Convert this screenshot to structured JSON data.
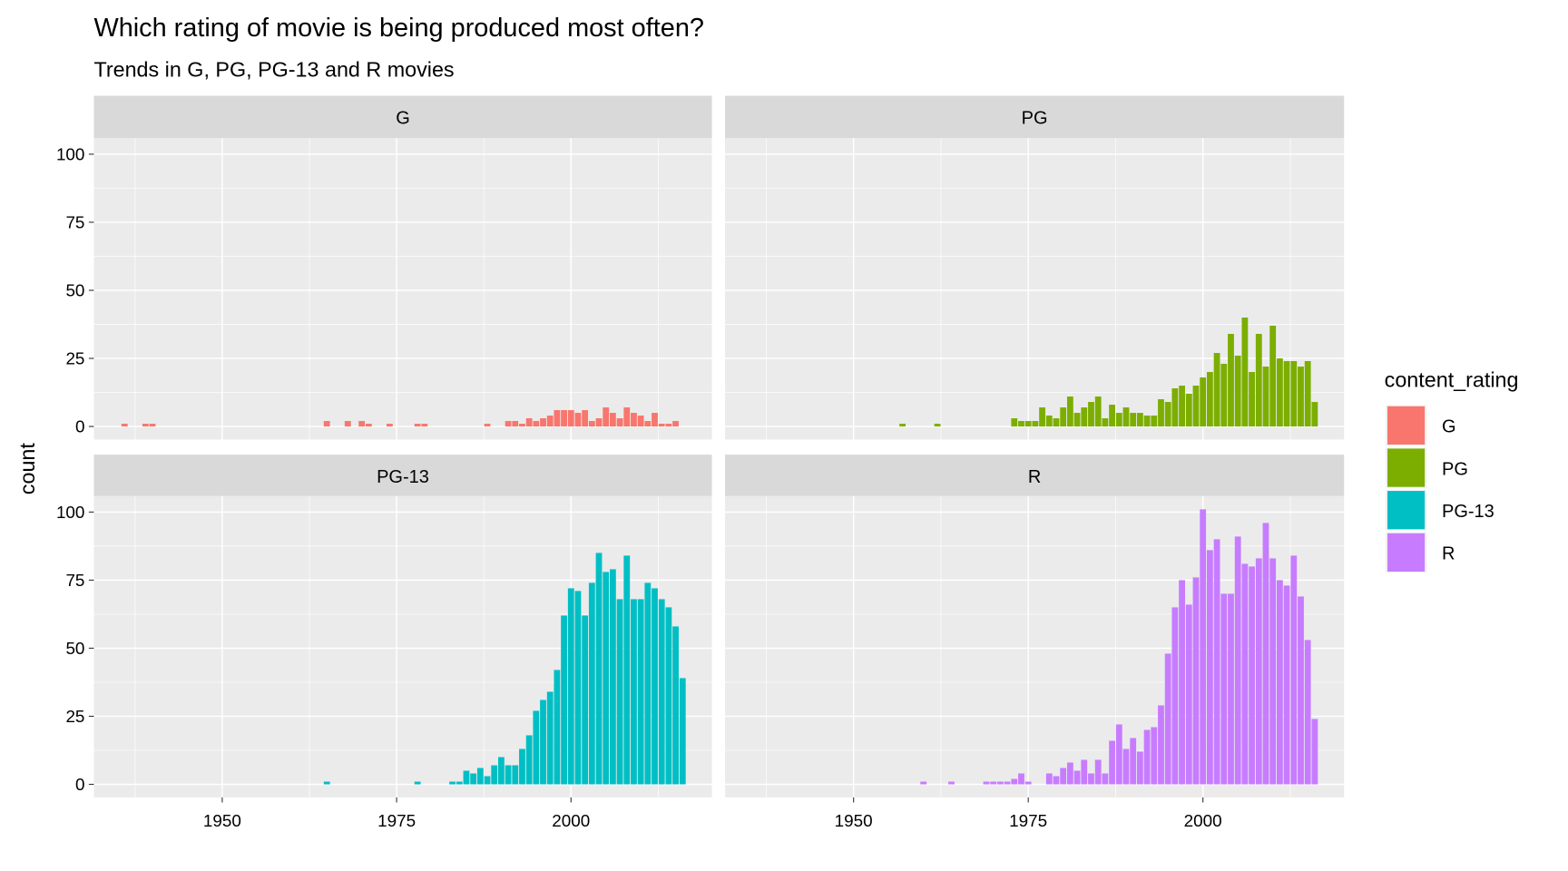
{
  "chart_data": {
    "type": "histogram",
    "title": "Which rating of movie is being produced most often?",
    "subtitle": "Trends in G, PG, PG-13 and R movies",
    "y_label": "count",
    "legend_title": "content_rating",
    "xlim": [
      1931.6,
      2020.2
    ],
    "xticks": [
      1950,
      1975,
      2000
    ],
    "ylim": [
      -4.8,
      105.9
    ],
    "yticks": [
      0,
      25,
      50,
      75,
      100
    ],
    "grid": true,
    "series": [
      {
        "name": "G",
        "color": "#f8766d",
        "x": [
          1936,
          1939,
          1940,
          1965,
          1968,
          1970,
          1971,
          1974,
          1978,
          1979,
          1988,
          1991,
          1992,
          1993,
          1994,
          1995,
          1996,
          1997,
          1998,
          1999,
          2000,
          2001,
          2002,
          2003,
          2004,
          2005,
          2006,
          2007,
          2008,
          2009,
          2010,
          2011,
          2012,
          2013,
          2014,
          2015
        ],
        "values": [
          1,
          1,
          1,
          2,
          2,
          2,
          1,
          1,
          1,
          1,
          1,
          2,
          2,
          1,
          3,
          2,
          3,
          4,
          6,
          6,
          6,
          5,
          6,
          2,
          3,
          7,
          5,
          3,
          7,
          5,
          4,
          2,
          5,
          1,
          1,
          2
        ]
      },
      {
        "name": "PG",
        "color": "#7cae00",
        "x": [
          1957,
          1962,
          1973,
          1974,
          1975,
          1976,
          1977,
          1978,
          1979,
          1980,
          1981,
          1982,
          1983,
          1984,
          1985,
          1986,
          1987,
          1988,
          1989,
          1990,
          1991,
          1992,
          1993,
          1994,
          1995,
          1996,
          1997,
          1998,
          1999,
          2000,
          2001,
          2002,
          2003,
          2004,
          2005,
          2006,
          2007,
          2008,
          2009,
          2010,
          2011,
          2012,
          2013,
          2014,
          2015,
          2016
        ],
        "values": [
          1,
          1,
          3,
          2,
          2,
          2,
          7,
          4,
          3,
          7,
          11,
          5,
          7,
          9,
          11,
          3,
          8,
          5,
          7,
          5,
          5,
          4,
          4,
          10,
          9,
          14,
          15,
          12,
          15,
          18,
          20,
          27,
          23,
          34,
          26,
          40,
          20,
          34,
          22,
          37,
          25,
          24,
          24,
          22,
          24,
          9
        ]
      },
      {
        "name": "PG-13",
        "color": "#00bfc4",
        "x": [
          1965,
          1978,
          1983,
          1984,
          1985,
          1986,
          1987,
          1988,
          1989,
          1990,
          1991,
          1992,
          1993,
          1994,
          1995,
          1996,
          1997,
          1998,
          1999,
          2000,
          2001,
          2002,
          2003,
          2004,
          2005,
          2006,
          2007,
          2008,
          2009,
          2010,
          2011,
          2012,
          2013,
          2014,
          2015,
          2016
        ],
        "values": [
          1,
          1,
          1,
          1,
          5,
          4,
          6,
          3,
          7,
          10,
          7,
          7,
          13,
          18,
          27,
          31,
          34,
          42,
          62,
          72,
          71,
          62,
          74,
          85,
          78,
          79,
          68,
          84,
          68,
          68,
          74,
          72,
          68,
          65,
          58,
          39
        ]
      },
      {
        "name": "R",
        "color": "#c77cff",
        "x": [
          1960,
          1964,
          1969,
          1970,
          1971,
          1972,
          1973,
          1974,
          1975,
          1978,
          1979,
          1980,
          1981,
          1982,
          1983,
          1984,
          1985,
          1986,
          1987,
          1988,
          1989,
          1990,
          1991,
          1992,
          1993,
          1994,
          1995,
          1996,
          1997,
          1998,
          1999,
          2000,
          2001,
          2002,
          2003,
          2004,
          2005,
          2006,
          2007,
          2008,
          2009,
          2010,
          2011,
          2012,
          2013,
          2014,
          2015,
          2016
        ],
        "values": [
          1,
          1,
          1,
          1,
          1,
          1,
          2,
          4,
          1,
          4,
          3,
          6,
          8,
          5,
          9,
          4,
          9,
          4,
          16,
          22,
          13,
          17,
          12,
          20,
          21,
          29,
          48,
          65,
          75,
          66,
          76,
          101,
          86,
          90,
          70,
          70,
          91,
          81,
          80,
          83,
          96,
          83,
          75,
          73,
          84,
          69,
          53,
          24
        ]
      }
    ]
  }
}
